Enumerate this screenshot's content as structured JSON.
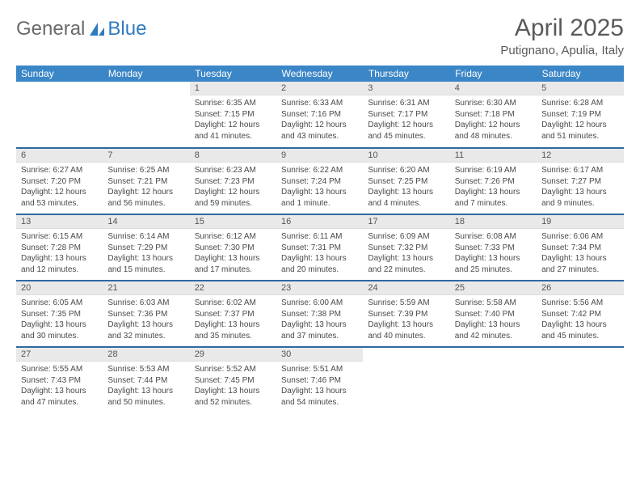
{
  "logo": {
    "text1": "General",
    "text2": "Blue"
  },
  "title": "April 2025",
  "location": "Putignano, Apulia, Italy",
  "colors": {
    "header_bg": "#3b86c7",
    "header_text": "#ffffff",
    "daynum_bg": "#e9e9e9",
    "row_border": "#2f6aa0",
    "logo_blue": "#2f7bbf",
    "body_text": "#4a4a4a"
  },
  "weekdays": [
    "Sunday",
    "Monday",
    "Tuesday",
    "Wednesday",
    "Thursday",
    "Friday",
    "Saturday"
  ],
  "weeks": [
    [
      null,
      null,
      {
        "n": "1",
        "sr": "6:35 AM",
        "ss": "7:15 PM",
        "dl": "12 hours and 41 minutes."
      },
      {
        "n": "2",
        "sr": "6:33 AM",
        "ss": "7:16 PM",
        "dl": "12 hours and 43 minutes."
      },
      {
        "n": "3",
        "sr": "6:31 AM",
        "ss": "7:17 PM",
        "dl": "12 hours and 45 minutes."
      },
      {
        "n": "4",
        "sr": "6:30 AM",
        "ss": "7:18 PM",
        "dl": "12 hours and 48 minutes."
      },
      {
        "n": "5",
        "sr": "6:28 AM",
        "ss": "7:19 PM",
        "dl": "12 hours and 51 minutes."
      }
    ],
    [
      {
        "n": "6",
        "sr": "6:27 AM",
        "ss": "7:20 PM",
        "dl": "12 hours and 53 minutes."
      },
      {
        "n": "7",
        "sr": "6:25 AM",
        "ss": "7:21 PM",
        "dl": "12 hours and 56 minutes."
      },
      {
        "n": "8",
        "sr": "6:23 AM",
        "ss": "7:23 PM",
        "dl": "12 hours and 59 minutes."
      },
      {
        "n": "9",
        "sr": "6:22 AM",
        "ss": "7:24 PM",
        "dl": "13 hours and 1 minute."
      },
      {
        "n": "10",
        "sr": "6:20 AM",
        "ss": "7:25 PM",
        "dl": "13 hours and 4 minutes."
      },
      {
        "n": "11",
        "sr": "6:19 AM",
        "ss": "7:26 PM",
        "dl": "13 hours and 7 minutes."
      },
      {
        "n": "12",
        "sr": "6:17 AM",
        "ss": "7:27 PM",
        "dl": "13 hours and 9 minutes."
      }
    ],
    [
      {
        "n": "13",
        "sr": "6:15 AM",
        "ss": "7:28 PM",
        "dl": "13 hours and 12 minutes."
      },
      {
        "n": "14",
        "sr": "6:14 AM",
        "ss": "7:29 PM",
        "dl": "13 hours and 15 minutes."
      },
      {
        "n": "15",
        "sr": "6:12 AM",
        "ss": "7:30 PM",
        "dl": "13 hours and 17 minutes."
      },
      {
        "n": "16",
        "sr": "6:11 AM",
        "ss": "7:31 PM",
        "dl": "13 hours and 20 minutes."
      },
      {
        "n": "17",
        "sr": "6:09 AM",
        "ss": "7:32 PM",
        "dl": "13 hours and 22 minutes."
      },
      {
        "n": "18",
        "sr": "6:08 AM",
        "ss": "7:33 PM",
        "dl": "13 hours and 25 minutes."
      },
      {
        "n": "19",
        "sr": "6:06 AM",
        "ss": "7:34 PM",
        "dl": "13 hours and 27 minutes."
      }
    ],
    [
      {
        "n": "20",
        "sr": "6:05 AM",
        "ss": "7:35 PM",
        "dl": "13 hours and 30 minutes."
      },
      {
        "n": "21",
        "sr": "6:03 AM",
        "ss": "7:36 PM",
        "dl": "13 hours and 32 minutes."
      },
      {
        "n": "22",
        "sr": "6:02 AM",
        "ss": "7:37 PM",
        "dl": "13 hours and 35 minutes."
      },
      {
        "n": "23",
        "sr": "6:00 AM",
        "ss": "7:38 PM",
        "dl": "13 hours and 37 minutes."
      },
      {
        "n": "24",
        "sr": "5:59 AM",
        "ss": "7:39 PM",
        "dl": "13 hours and 40 minutes."
      },
      {
        "n": "25",
        "sr": "5:58 AM",
        "ss": "7:40 PM",
        "dl": "13 hours and 42 minutes."
      },
      {
        "n": "26",
        "sr": "5:56 AM",
        "ss": "7:42 PM",
        "dl": "13 hours and 45 minutes."
      }
    ],
    [
      {
        "n": "27",
        "sr": "5:55 AM",
        "ss": "7:43 PM",
        "dl": "13 hours and 47 minutes."
      },
      {
        "n": "28",
        "sr": "5:53 AM",
        "ss": "7:44 PM",
        "dl": "13 hours and 50 minutes."
      },
      {
        "n": "29",
        "sr": "5:52 AM",
        "ss": "7:45 PM",
        "dl": "13 hours and 52 minutes."
      },
      {
        "n": "30",
        "sr": "5:51 AM",
        "ss": "7:46 PM",
        "dl": "13 hours and 54 minutes."
      },
      null,
      null,
      null
    ]
  ],
  "labels": {
    "sunrise": "Sunrise:",
    "sunset": "Sunset:",
    "daylight": "Daylight:"
  }
}
